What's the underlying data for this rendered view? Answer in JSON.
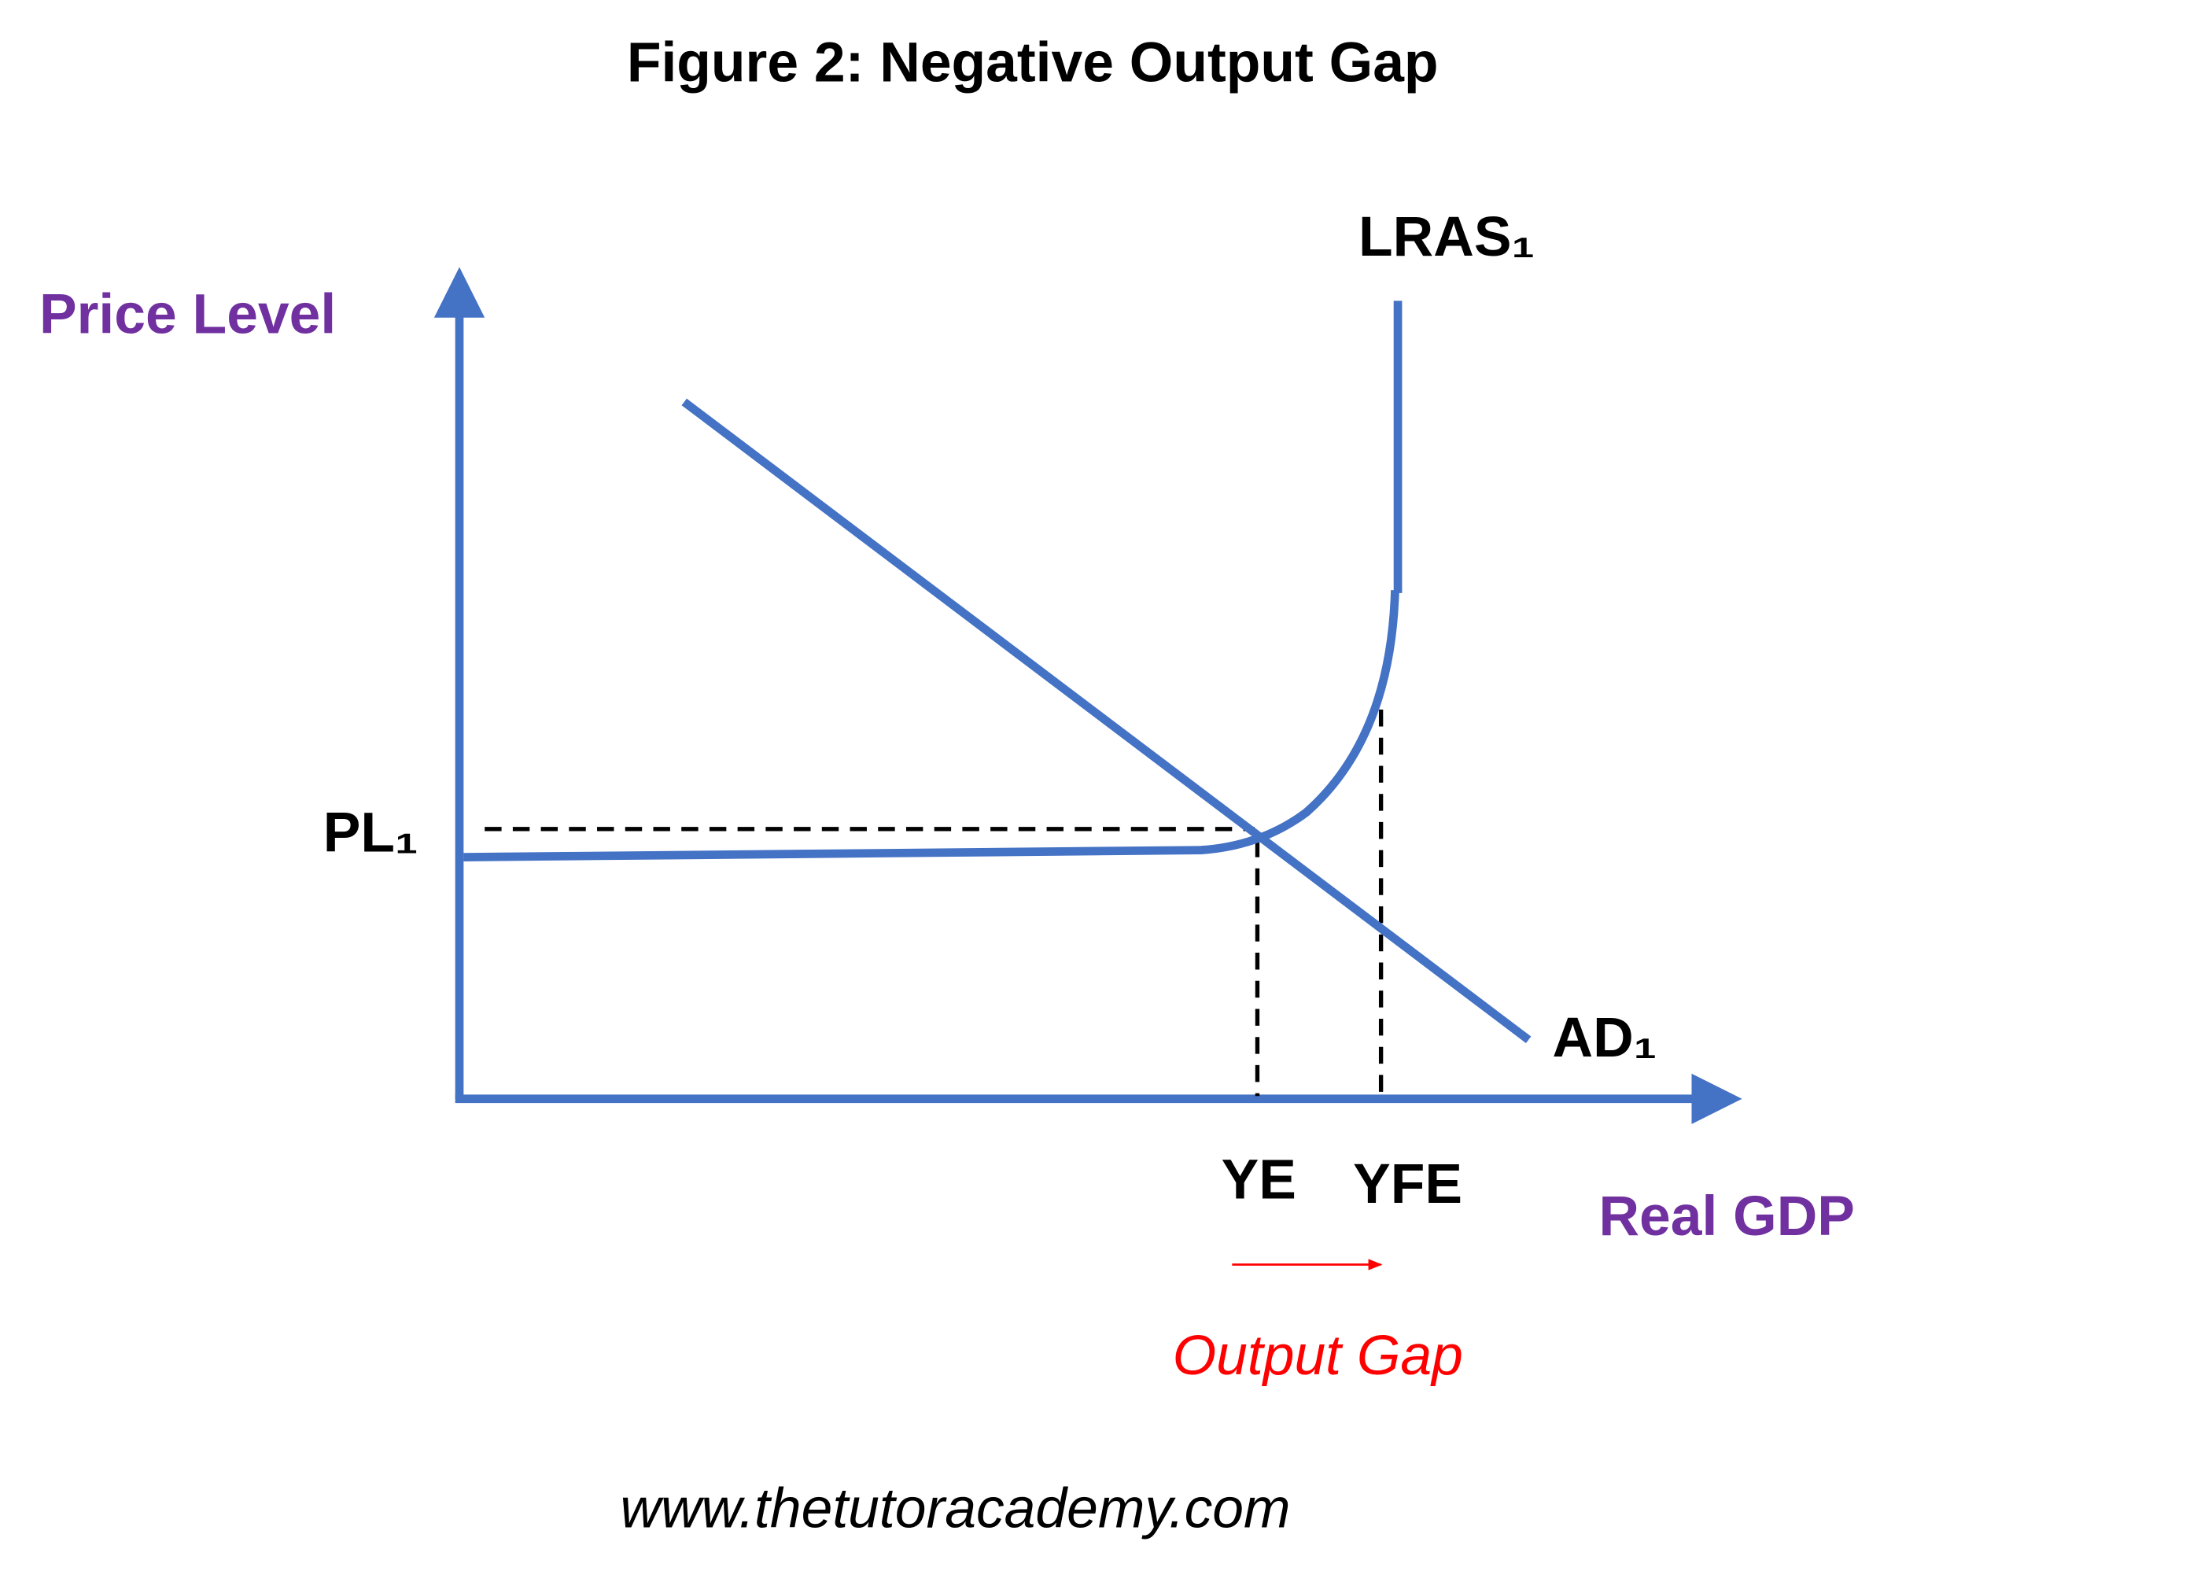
{
  "title": "Figure 2: Negative Output Gap",
  "axes": {
    "y_label": "Price Level",
    "x_label": "Real GDP"
  },
  "curves": {
    "lras": "LRAS₁",
    "ad": "AD₁"
  },
  "levels": {
    "price": "PL₁",
    "equilibrium_output": "YE",
    "full_employment_output": "YFE"
  },
  "annotation": "Output Gap",
  "footer": "www.thetutoracademy.com"
}
